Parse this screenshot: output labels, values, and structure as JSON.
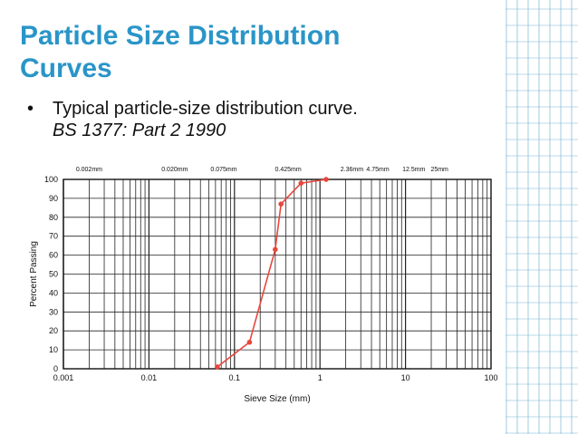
{
  "slide": {
    "title_line1": "Particle Size Distribution",
    "title_line2": "Curves",
    "bullet": "Typical particle-size distribution curve.",
    "bullet_sub": "BS 1377: Part 2 1990"
  },
  "chart_data": {
    "type": "line",
    "xlabel": "Sieve Size (mm)",
    "ylabel": "Percent Passing",
    "xscale": "log",
    "xlim": [
      0.001,
      100
    ],
    "ylim": [
      0,
      100
    ],
    "x_ticks": [
      "0.001",
      "0.01",
      "0.1",
      "1",
      "10",
      "100"
    ],
    "y_ticks": [
      "0",
      "10",
      "20",
      "30",
      "40",
      "50",
      "60",
      "70",
      "80",
      "90",
      "100"
    ],
    "top_sieve_labels": [
      {
        "label": "0.002mm",
        "value": 0.002
      },
      {
        "label": "0.020mm",
        "value": 0.02
      },
      {
        "label": "0.075mm",
        "value": 0.075
      },
      {
        "label": "0.425mm",
        "value": 0.425
      },
      {
        "label": "2.36mm",
        "value": 2.36
      },
      {
        "label": "4.75mm",
        "value": 4.75
      },
      {
        "label": "12.5mm",
        "value": 12.5
      },
      {
        "label": "25mm",
        "value": 25
      }
    ],
    "grid": true,
    "series": [
      {
        "color": "#e8463c",
        "x": [
          0.063,
          0.15,
          0.3,
          0.35,
          0.6,
          1.18
        ],
        "y": [
          1,
          14,
          63,
          87,
          98,
          100
        ]
      }
    ]
  }
}
